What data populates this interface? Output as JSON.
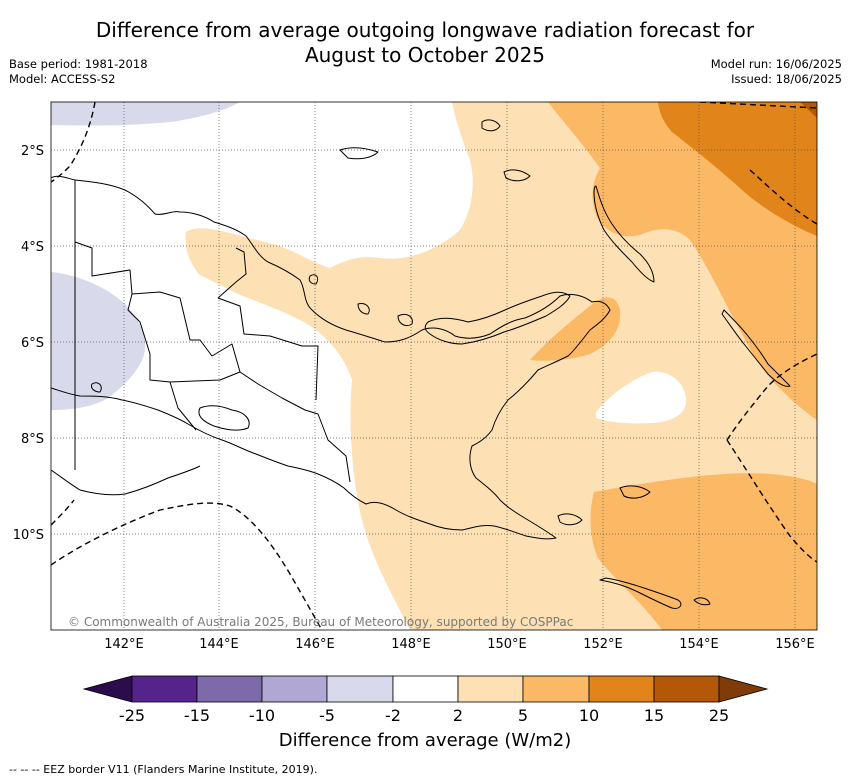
{
  "header": {
    "title_line1": "Difference from average outgoing longwave radiation forecast for",
    "title_line2": "August to October 2025",
    "base_period": "Base period: 1981-2018",
    "model": "Model: ACCESS-S2",
    "model_run": "Model run: 16/06/2025",
    "issued": "Issued: 18/06/2025"
  },
  "map": {
    "lon_range": [
      141.0,
      156.5
    ],
    "lat_range": [
      -12.0,
      -1.0
    ],
    "lon_ticks": [
      "142°E",
      "144°E",
      "146°E",
      "148°E",
      "150°E",
      "152°E",
      "154°E",
      "156°E"
    ],
    "lat_ticks": [
      "2°S",
      "4°S",
      "6°S",
      "8°S",
      "10°S"
    ],
    "gridlines": "dotted",
    "copyright": "© Commonwealth of Australia 2025, Bureau of Meteorology, supported by COSPPac"
  },
  "colorbar": {
    "label": "Difference from average (W/m2)",
    "ticks": [
      "-25",
      "-15",
      "-10",
      "-5",
      "-2",
      "2",
      "5",
      "10",
      "15",
      "25"
    ],
    "colors": {
      "lt_-25": "#2d0c4e",
      "-25_-15": "#55248a",
      "-15_-10": "#7d6aa8",
      "-10_-5": "#b0a8d2",
      "-5_-2": "#d8d9ea",
      "-2_2": "#ffffff",
      "2_5": "#fde0b4",
      "5_10": "#fbb865",
      "10_15": "#e1841a",
      "15_25": "#b35806",
      "gt_25": "#7f3b08"
    }
  },
  "footnote": "--  --  -- EEZ border V11 (Flanders Marine Institute, 2019)."
}
